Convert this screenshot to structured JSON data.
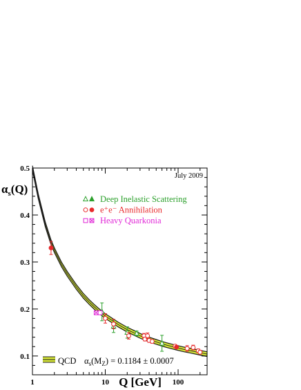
{
  "chart_data": {
    "type": "scatter",
    "title": "",
    "date_label": "July 2009",
    "xlabel": "Q [GeV]",
    "ylabel": {
      "main": "α",
      "sub": "s",
      "suffix": "(Q)"
    },
    "x_scale": "log",
    "xlim": [
      1,
      250
    ],
    "ylim": [
      0.06,
      0.5
    ],
    "x_ticks": [
      1,
      10,
      100
    ],
    "x_tick_labels": [
      "1",
      "10",
      "100"
    ],
    "y_ticks": [
      0.1,
      0.2,
      0.3,
      0.4,
      0.5
    ],
    "y_tick_labels": [
      "0.1",
      "0.2",
      "0.3",
      "0.4",
      "0.5"
    ],
    "grid": false,
    "legend_position": "upper-right",
    "legend": [
      {
        "label": "Deep Inelastic Scattering",
        "color": "#2ca02c",
        "markers": [
          "open-triangle",
          "filled-triangle"
        ]
      },
      {
        "label": "e⁺e⁻ Annihilation",
        "color": "#e8292b",
        "markers": [
          "open-circle",
          "filled-circle"
        ]
      },
      {
        "label": "Heavy Quarkonia",
        "color": "#e026d6",
        "markers": [
          "open-square",
          "crossed-square"
        ]
      }
    ],
    "qcd_band": {
      "label": "QCD",
      "alpha_s_mz": 0.1184,
      "alpha_s_mz_error": 0.0007,
      "mz": 91.19,
      "band_color": "#d6e63a",
      "edge_color": "#1a1a1a",
      "curve": [
        [
          1.0,
          0.5
        ],
        [
          1.2,
          0.44
        ],
        [
          1.5,
          0.38
        ],
        [
          1.8,
          0.342
        ],
        [
          2.0,
          0.325
        ],
        [
          2.5,
          0.295
        ],
        [
          3.0,
          0.275
        ],
        [
          4.0,
          0.247
        ],
        [
          5.0,
          0.228
        ],
        [
          6.0,
          0.215
        ],
        [
          7.0,
          0.205
        ],
        [
          8.0,
          0.197
        ],
        [
          10.0,
          0.185
        ],
        [
          12.0,
          0.177
        ],
        [
          15.0,
          0.167
        ],
        [
          20.0,
          0.156
        ],
        [
          25.0,
          0.149
        ],
        [
          30.0,
          0.143
        ],
        [
          40.0,
          0.135
        ],
        [
          50.0,
          0.13
        ],
        [
          60.0,
          0.126
        ],
        [
          70.0,
          0.123
        ],
        [
          91.2,
          0.1184
        ],
        [
          120.0,
          0.114
        ],
        [
          150.0,
          0.111
        ],
        [
          200.0,
          0.107
        ],
        [
          250.0,
          0.104
        ]
      ]
    },
    "footer": {
      "qcd_label": "QCD",
      "alpha_symbol": "α",
      "alpha_sub": "s",
      "mz_text": "(M",
      "mz_sub": "Z",
      "value_text": ") = 0.1184 ± 0.0007"
    },
    "series": [
      {
        "name": "Deep Inelastic Scattering",
        "color": "#2ca02c",
        "points": [
          {
            "x": 9.0,
            "y": 0.194,
            "err": 0.019,
            "marker": "open-triangle"
          },
          {
            "x": 13.0,
            "y": 0.163,
            "err": 0.013,
            "marker": "open-triangle"
          },
          {
            "x": 20.0,
            "y": 0.15,
            "err": 0.012,
            "marker": "open-triangle"
          },
          {
            "x": 27.0,
            "y": 0.148,
            "err": 0.005,
            "marker": "open-triangle"
          },
          {
            "x": 60.0,
            "y": 0.127,
            "err": 0.017,
            "marker": "open-triangle"
          }
        ]
      },
      {
        "name": "e⁺e⁻ Annihilation",
        "color": "#e8292b",
        "points": [
          {
            "x": 1.8,
            "y": 0.33,
            "err": 0.014,
            "marker": "filled-circle"
          },
          {
            "x": 10.0,
            "y": 0.18,
            "err": 0.01,
            "marker": "open-circle"
          },
          {
            "x": 13.0,
            "y": 0.168,
            "err": 0.01,
            "marker": "open-circle"
          },
          {
            "x": 21.0,
            "y": 0.143,
            "err": 0.007,
            "marker": "open-circle"
          },
          {
            "x": 34.0,
            "y": 0.143,
            "err": 0.005,
            "marker": "open-circle"
          },
          {
            "x": 35.0,
            "y": 0.136,
            "err": 0.004,
            "marker": "open-circle"
          },
          {
            "x": 38.0,
            "y": 0.143,
            "err": 0.006,
            "marker": "open-circle"
          },
          {
            "x": 40.0,
            "y": 0.133,
            "err": 0.004,
            "marker": "open-circle"
          },
          {
            "x": 44.0,
            "y": 0.131,
            "err": 0.004,
            "marker": "open-circle"
          },
          {
            "x": 91.0,
            "y": 0.121,
            "err": 0.003,
            "marker": "open-circle"
          },
          {
            "x": 95.0,
            "y": 0.119,
            "err": 0.002,
            "marker": "filled-circle"
          },
          {
            "x": 133.0,
            "y": 0.116,
            "err": 0.006,
            "marker": "open-circle"
          },
          {
            "x": 161.0,
            "y": 0.118,
            "err": 0.005,
            "marker": "open-circle"
          },
          {
            "x": 189.0,
            "y": 0.111,
            "err": 0.004,
            "marker": "open-circle"
          },
          {
            "x": 200.0,
            "y": 0.108,
            "err": 0.004,
            "marker": "open-circle"
          }
        ]
      },
      {
        "name": "Heavy Quarkonia",
        "color": "#e026d6",
        "points": [
          {
            "x": 7.5,
            "y": 0.192,
            "err": 0.003,
            "marker": "crossed-square"
          },
          {
            "x": 8.5,
            "y": 0.192,
            "err": 0.004,
            "marker": "open-square"
          }
        ]
      }
    ]
  }
}
